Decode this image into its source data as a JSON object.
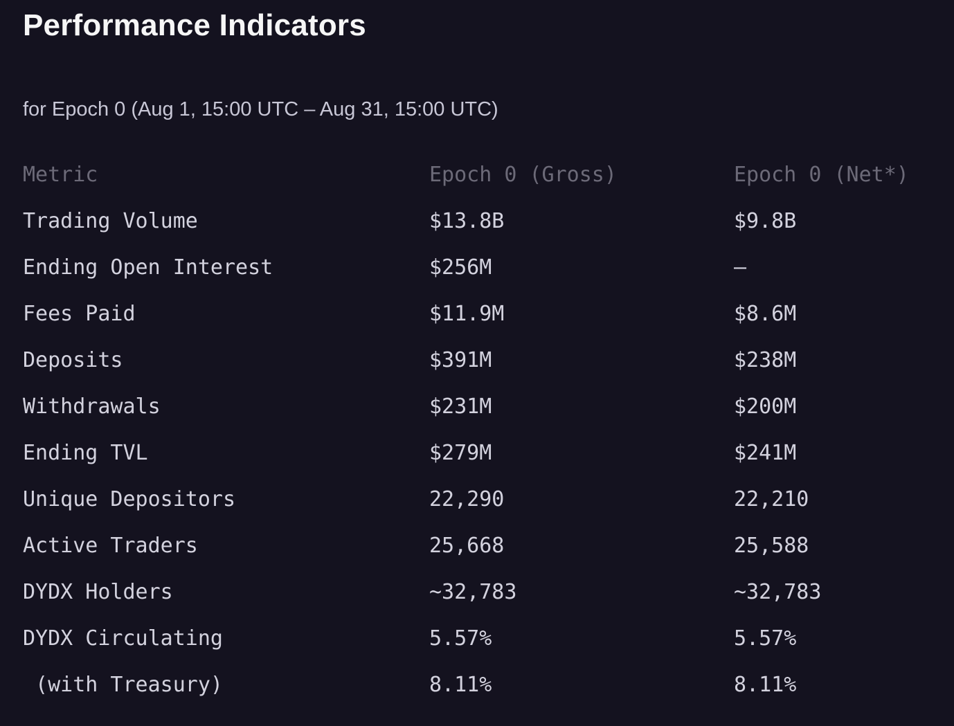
{
  "theme": {
    "background": "#14121f",
    "title_color": "#f6f6f6",
    "subtitle_color": "#c8c7d6",
    "header_text_color": "#6c6a78",
    "cell_text_color": "#d3d2de"
  },
  "header": {
    "title": "Performance Indicators",
    "subtitle": "for Epoch 0 (Aug 1, 15:00 UTC – Aug 31, 15:00 UTC)"
  },
  "table": {
    "columns": [
      "Metric",
      "Epoch 0 (Gross)",
      "Epoch 0 (Net*)"
    ],
    "rows": [
      {
        "metric": "Trading Volume",
        "gross": "$13.8B",
        "net": "$9.8B"
      },
      {
        "metric": "Ending Open Interest",
        "gross": "$256M",
        "net": "—"
      },
      {
        "metric": "Fees Paid",
        "gross": "$11.9M",
        "net": "$8.6M"
      },
      {
        "metric": "Deposits",
        "gross": "$391M",
        "net": "$238M"
      },
      {
        "metric": "Withdrawals",
        "gross": "$231M",
        "net": "$200M"
      },
      {
        "metric": "Ending TVL",
        "gross": "$279M",
        "net": "$241M"
      },
      {
        "metric": "Unique Depositors",
        "gross": "22,290",
        "net": "22,210"
      },
      {
        "metric": "Active Traders",
        "gross": "25,668",
        "net": "25,588"
      },
      {
        "metric": "DYDX Holders",
        "gross": "~32,783",
        "net": "~32,783"
      },
      {
        "metric": "DYDX Circulating",
        "gross": "5.57%",
        "net": "5.57%"
      },
      {
        "metric": " (with Treasury)",
        "gross": "8.11%",
        "net": "8.11%"
      }
    ]
  }
}
